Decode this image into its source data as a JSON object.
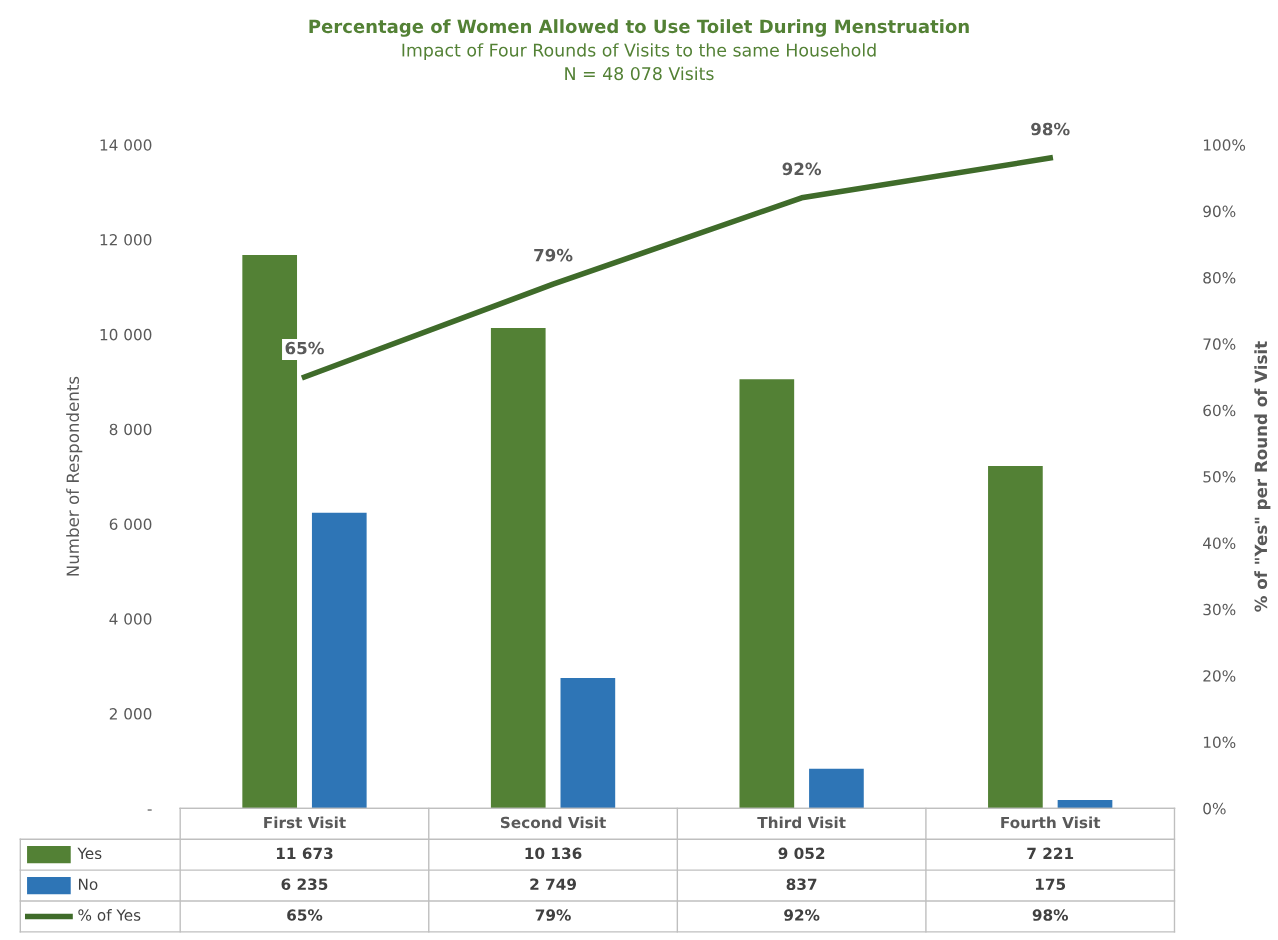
{
  "chart_data": {
    "type": "bar",
    "title": "Percentage of Women Allowed to Use Toilet During Menstruation",
    "subtitle": "Impact of Four Rounds of Visits to the same Household",
    "annotations": [
      "N = 48 078 Visits"
    ],
    "ylabel": "Number of Respondents",
    "y2label": "% of \"Yes\" per Round of Visit",
    "categories": [
      "First Visit",
      "Second Visit",
      "Third Visit",
      "Fourth Visit"
    ],
    "series": [
      {
        "name": "Yes",
        "color": "#538135",
        "values": [
          11673,
          10136,
          9052,
          7221
        ],
        "value_labels": [
          "11 673",
          "10 136",
          "9 052",
          "7 221"
        ]
      },
      {
        "name": "No",
        "color": "#2e75b6",
        "values": [
          6235,
          2749,
          837,
          175
        ],
        "value_labels": [
          "6 235",
          "2 749",
          "837",
          "175"
        ]
      },
      {
        "name": "% of Yes",
        "type": "line",
        "axis": "y2",
        "color": "#3f6b2a",
        "values": [
          65,
          79,
          92,
          98
        ],
        "value_labels": [
          "65%",
          "79%",
          "92%",
          "98%"
        ]
      }
    ],
    "ylim": [
      0,
      14000
    ],
    "yticks": [
      {
        "value": 0,
        "label": "-"
      },
      {
        "value": 2000,
        "label": "2 000"
      },
      {
        "value": 4000,
        "label": "4 000"
      },
      {
        "value": 6000,
        "label": "6 000"
      },
      {
        "value": 8000,
        "label": "8 000"
      },
      {
        "value": 10000,
        "label": "10 000"
      },
      {
        "value": 12000,
        "label": "12 000"
      },
      {
        "value": 14000,
        "label": "14 000"
      }
    ],
    "y2lim": [
      0,
      100
    ],
    "y2ticks": [
      {
        "value": 0,
        "label": "0%"
      },
      {
        "value": 10,
        "label": "10%"
      },
      {
        "value": 20,
        "label": "20%"
      },
      {
        "value": 30,
        "label": "30%"
      },
      {
        "value": 40,
        "label": "40%"
      },
      {
        "value": 50,
        "label": "50%"
      },
      {
        "value": 60,
        "label": "60%"
      },
      {
        "value": 70,
        "label": "70%"
      },
      {
        "value": 80,
        "label": "80%"
      },
      {
        "value": 90,
        "label": "90%"
      },
      {
        "value": 100,
        "label": "100%"
      }
    ],
    "legend": "bottom",
    "marker": "none",
    "line_style": "solid",
    "grid": false
  }
}
